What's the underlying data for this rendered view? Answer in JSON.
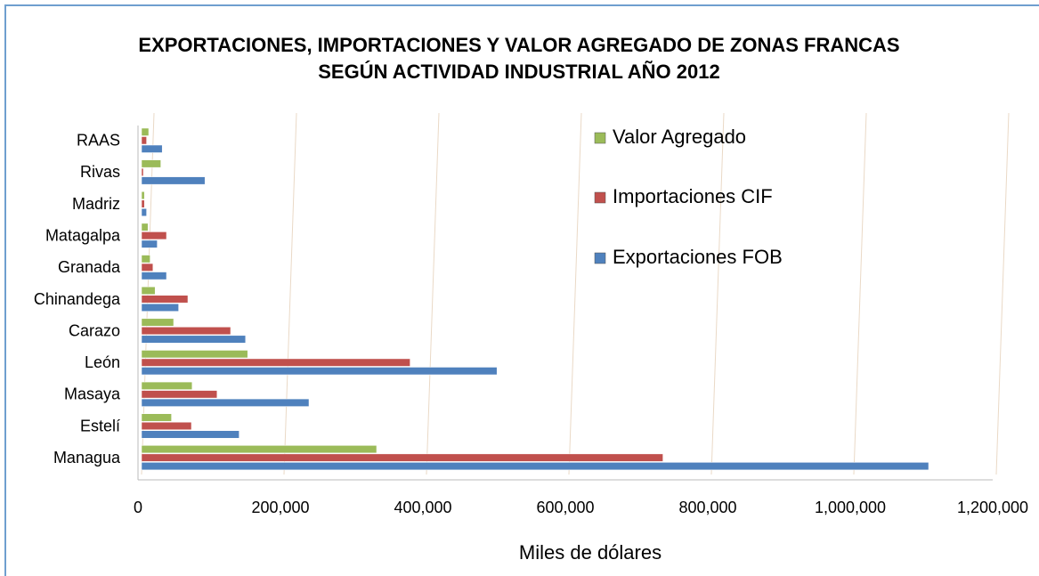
{
  "chart_data": {
    "type": "hbar",
    "title": "EXPORTACIONES, IMPORTACIONES Y VALOR AGREGADO DE ZONAS FRANCAS",
    "subtitle": "SEGÚN ACTIVIDAD INDUSTRIAL AÑO 2012",
    "x_label": "Miles de dólares",
    "categories": [
      "RAAS",
      "Rivas",
      "Madriz",
      "Matagalpa",
      "Granada",
      "Chinandega",
      "Carazo",
      "León",
      "Masaya",
      "Estelí",
      "Managua"
    ],
    "series": [
      {
        "name": "Valor Agregado",
        "color": "#9bbb59",
        "values": [
          10000,
          27000,
          4000,
          9000,
          12000,
          19000,
          45000,
          149000,
          71000,
          42000,
          330000
        ]
      },
      {
        "name": "Importaciones CIF",
        "color": "#c0504d",
        "values": [
          7000,
          2500,
          4000,
          35000,
          16000,
          65000,
          125000,
          377000,
          106000,
          70000,
          732000
        ]
      },
      {
        "name": "Exportaciones FOB",
        "color": "#4f81bd",
        "values": [
          29000,
          89000,
          7000,
          22000,
          35000,
          52000,
          146000,
          499000,
          235000,
          137000,
          1105000
        ]
      }
    ],
    "xlim": [
      0,
      1200000
    ],
    "xticks": [
      0,
      {
        "value": 200000,
        "label": "200,000"
      },
      {
        "value": 400000,
        "label": "400,000"
      },
      {
        "value": 600000,
        "label": "600,000"
      },
      {
        "value": 800000,
        "label": "800,000"
      },
      {
        "value": 1000000,
        "label": "1,000,000"
      },
      {
        "value": 1200000,
        "label": "1,200,000"
      }
    ],
    "grid": true,
    "legend": "upper right"
  }
}
